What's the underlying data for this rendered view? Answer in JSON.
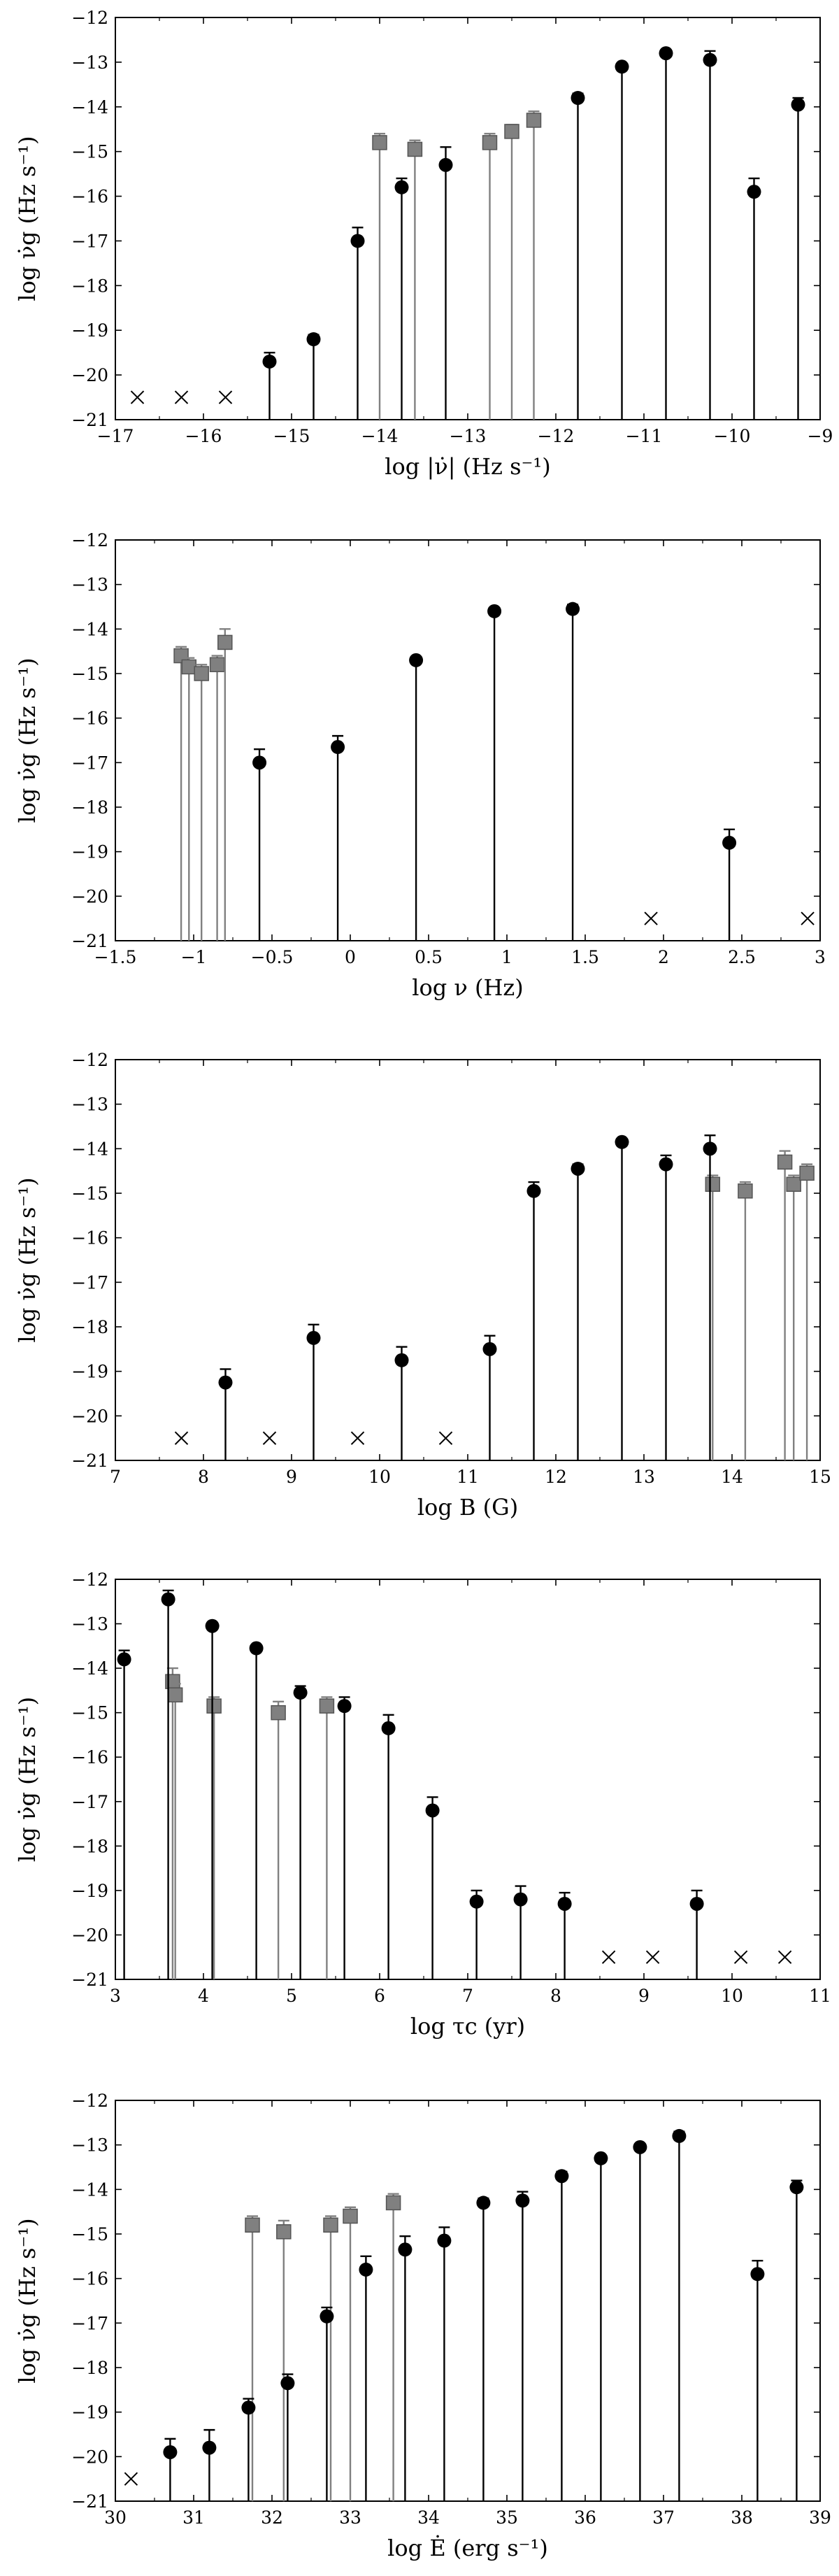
{
  "colors": {
    "black_series": "#000000",
    "gray_series": "#808080",
    "gray_edge": "#555555"
  },
  "panels": [
    {
      "ylabel": "log ν̇g (Hz s⁻¹)",
      "xlabel": "log |ν̇| (Hz s⁻¹)"
    },
    {
      "ylabel": "log ν̇g (Hz s⁻¹)",
      "xlabel": "log ν (Hz)"
    },
    {
      "ylabel": "log ν̇g (Hz s⁻¹)",
      "xlabel": "log B (G)"
    },
    {
      "ylabel": "log ν̇g (Hz s⁻¹)",
      "xlabel": "log τc (yr)"
    },
    {
      "ylabel": "log ν̇g (Hz s⁻¹)",
      "xlabel": "log Ė (erg s⁻¹)"
    }
  ],
  "chart_data": [
    {
      "type": "scatter",
      "xlabel": "log |ν̇| (Hz s⁻¹)",
      "ylabel": "log ν̇g (Hz s⁻¹)",
      "xlim": [
        -17,
        -9
      ],
      "ylim": [
        -21,
        -12
      ],
      "xticks": [
        -17,
        -16,
        -15,
        -14,
        -13,
        -12,
        -11,
        -10,
        -9
      ],
      "yticks": [
        -21,
        -20,
        -19,
        -18,
        -17,
        -16,
        -15,
        -14,
        -13,
        -12
      ],
      "series": [
        {
          "marker": "circle",
          "color": "#000000",
          "points": [
            [
              -15.25,
              -19.7,
              -0.5,
              0.2
            ],
            [
              -14.75,
              -19.2,
              -0.2,
              0.1
            ],
            [
              -14.25,
              -17.0,
              -0.9,
              0.3
            ],
            [
              -13.75,
              -15.8,
              -0.6,
              0.2
            ],
            [
              -13.25,
              -15.3,
              -0.7,
              0.4
            ],
            [
              -11.75,
              -13.8,
              -0.2,
              0.1
            ],
            [
              -11.25,
              -13.1,
              -0.05,
              0.05
            ],
            [
              -10.75,
              -12.8,
              -0.1,
              0.05
            ],
            [
              -10.25,
              -12.95,
              -0.3,
              0.2
            ],
            [
              -9.75,
              -15.9,
              -0.6,
              0.3
            ],
            [
              -9.25,
              -13.95,
              -0.2,
              0.15
            ]
          ]
        },
        {
          "marker": "square",
          "color": "#808080",
          "points": [
            [
              -14.0,
              -14.8,
              -0.8,
              0.2
            ],
            [
              -13.6,
              -14.95,
              -6.05,
              0.2
            ],
            [
              -12.75,
              -14.8,
              -0.3,
              0.2
            ],
            [
              -12.5,
              -14.55,
              -0.3,
              0.15
            ],
            [
              -12.25,
              -14.3,
              -6.7,
              0.2
            ]
          ]
        },
        {
          "marker": "cross",
          "color": "#000000",
          "points": [
            [
              -16.75,
              -20.5
            ],
            [
              -16.25,
              -20.5
            ],
            [
              -15.75,
              -20.5
            ]
          ]
        }
      ]
    },
    {
      "type": "scatter",
      "xlabel": "log ν (Hz)",
      "ylabel": "log ν̇g (Hz s⁻¹)",
      "xlim": [
        -1.5,
        3.0
      ],
      "ylim": [
        -21,
        -12
      ],
      "xticks": [
        -1.5,
        -1.0,
        -0.5,
        0.0,
        0.5,
        1.0,
        1.5,
        2.0,
        2.5,
        3.0
      ],
      "yticks": [
        -21,
        -20,
        -19,
        -18,
        -17,
        -16,
        -15,
        -14,
        -13,
        -12
      ],
      "series": [
        {
          "marker": "circle",
          "color": "#000000",
          "points": [
            [
              -0.58,
              -17.0,
              -0.7,
              0.3
            ],
            [
              -0.08,
              -16.65,
              -0.45,
              0.25
            ],
            [
              0.42,
              -14.7,
              -0.1,
              0.08
            ],
            [
              0.92,
              -13.6,
              -0.1,
              0.05
            ],
            [
              1.42,
              -13.55,
              -0.1,
              0.1
            ],
            [
              2.42,
              -18.8,
              -0.7,
              0.3
            ]
          ]
        },
        {
          "marker": "square",
          "color": "#808080",
          "points": [
            [
              -1.08,
              -14.6,
              -0.3,
              0.2
            ],
            [
              -1.03,
              -14.85,
              -0.4,
              0.2
            ],
            [
              -0.95,
              -15.0,
              -6.0,
              0.2
            ],
            [
              -0.85,
              -14.8,
              -6.2,
              0.2
            ],
            [
              -0.8,
              -14.3,
              -0.4,
              0.3
            ]
          ]
        },
        {
          "marker": "cross",
          "color": "#000000",
          "points": [
            [
              1.92,
              -20.5
            ],
            [
              2.92,
              -20.5
            ]
          ]
        }
      ]
    },
    {
      "type": "scatter",
      "xlabel": "log B (G)",
      "ylabel": "log ν̇g (Hz s⁻¹)",
      "xlim": [
        7,
        15
      ],
      "ylim": [
        -21,
        -12
      ],
      "xticks": [
        7,
        8,
        9,
        10,
        11,
        12,
        13,
        14,
        15
      ],
      "yticks": [
        -21,
        -20,
        -19,
        -18,
        -17,
        -16,
        -15,
        -14,
        -13,
        -12
      ],
      "series": [
        {
          "marker": "circle",
          "color": "#000000",
          "points": [
            [
              8.25,
              -19.25,
              -1.75,
              0.3
            ],
            [
              9.25,
              -18.25,
              -2.75,
              0.3
            ],
            [
              10.25,
              -18.75,
              -2.25,
              0.3
            ],
            [
              11.25,
              -18.5,
              -0.6,
              0.3
            ],
            [
              11.75,
              -14.95,
              -0.2,
              0.2
            ],
            [
              12.25,
              -14.45,
              -0.1,
              0.1
            ],
            [
              12.75,
              -13.85,
              -0.1,
              0.05
            ],
            [
              13.25,
              -14.35,
              -0.3,
              0.2
            ],
            [
              13.75,
              -14.0,
              -0.3,
              0.3
            ]
          ]
        },
        {
          "marker": "square",
          "color": "#808080",
          "points": [
            [
              13.78,
              -14.8,
              -0.8,
              0.2
            ],
            [
              14.15,
              -14.95,
              -6.05,
              0.2
            ],
            [
              14.6,
              -14.3,
              -6.7,
              0.25
            ],
            [
              14.7,
              -14.8,
              -0.5,
              0.2
            ],
            [
              14.85,
              -14.55,
              -0.3,
              0.2
            ]
          ]
        },
        {
          "marker": "cross",
          "color": "#000000",
          "points": [
            [
              7.75,
              -20.5
            ],
            [
              8.75,
              -20.5
            ],
            [
              9.75,
              -20.5
            ],
            [
              10.75,
              -20.5
            ]
          ]
        }
      ]
    },
    {
      "type": "scatter",
      "xlabel": "log τc (yr)",
      "ylabel": "log ν̇g (Hz s⁻¹)",
      "xlim": [
        3,
        11
      ],
      "ylim": [
        -21,
        -12
      ],
      "xticks": [
        3,
        4,
        5,
        6,
        7,
        8,
        9,
        10,
        11
      ],
      "yticks": [
        -21,
        -20,
        -19,
        -18,
        -17,
        -16,
        -15,
        -14,
        -13,
        -12
      ],
      "series": [
        {
          "marker": "circle",
          "color": "#000000",
          "points": [
            [
              3.1,
              -13.8,
              -0.3,
              0.2
            ],
            [
              3.6,
              -12.45,
              -0.2,
              0.2
            ],
            [
              4.1,
              -13.05,
              -0.05,
              0.05
            ],
            [
              4.6,
              -13.55,
              -0.05,
              0.05
            ],
            [
              5.1,
              -14.55,
              -0.2,
              0.15
            ],
            [
              5.6,
              -14.85,
              -0.3,
              0.2
            ],
            [
              6.1,
              -15.35,
              -0.5,
              0.3
            ],
            [
              6.6,
              -17.2,
              -0.8,
              0.3
            ],
            [
              7.1,
              -19.25,
              -0.45,
              0.25
            ],
            [
              7.6,
              -19.2,
              -0.6,
              0.3
            ],
            [
              8.1,
              -19.3,
              -0.5,
              0.25
            ],
            [
              9.6,
              -19.3,
              -1.7,
              0.3
            ]
          ]
        },
        {
          "marker": "square",
          "color": "#808080",
          "points": [
            [
              3.65,
              -14.3,
              -6.7,
              0.3
            ],
            [
              3.68,
              -14.6,
              -0.4,
              0.25
            ],
            [
              4.12,
              -14.85,
              -0.4,
              0.2
            ],
            [
              4.85,
              -15.0,
              -6.0,
              0.25
            ],
            [
              5.4,
              -14.85,
              -0.8,
              0.2
            ]
          ]
        },
        {
          "marker": "cross",
          "color": "#000000",
          "points": [
            [
              8.6,
              -20.5
            ],
            [
              9.1,
              -20.5
            ],
            [
              10.1,
              -20.5
            ],
            [
              10.6,
              -20.5
            ]
          ]
        }
      ]
    },
    {
      "type": "scatter",
      "xlabel": "log Ė (erg s⁻¹)",
      "ylabel": "log ν̇g (Hz s⁻¹)",
      "xlim": [
        30,
        39
      ],
      "ylim": [
        -21,
        -12
      ],
      "xticks": [
        30,
        31,
        32,
        33,
        34,
        35,
        36,
        37,
        38,
        39
      ],
      "yticks": [
        -21,
        -20,
        -19,
        -18,
        -17,
        -16,
        -15,
        -14,
        -13,
        -12
      ],
      "series": [
        {
          "marker": "circle",
          "color": "#000000",
          "points": [
            [
              30.7,
              -19.9,
              -1.1,
              0.3
            ],
            [
              31.2,
              -19.8,
              -0.5,
              0.4
            ],
            [
              31.7,
              -18.9,
              -0.3,
              0.2
            ],
            [
              32.2,
              -18.35,
              -0.3,
              0.2
            ],
            [
              32.7,
              -16.85,
              -0.4,
              0.2
            ],
            [
              33.2,
              -15.8,
              -0.6,
              0.3
            ],
            [
              33.7,
              -15.35,
              -0.85,
              0.3
            ],
            [
              34.2,
              -15.15,
              -1.0,
              0.3
            ],
            [
              34.7,
              -14.3,
              -0.2,
              0.1
            ],
            [
              35.2,
              -14.25,
              -0.3,
              0.2
            ],
            [
              35.7,
              -13.7,
              -0.15,
              0.1
            ],
            [
              36.2,
              -13.3,
              -0.05,
              0.05
            ],
            [
              36.7,
              -13.05,
              -0.05,
              0.05
            ],
            [
              37.2,
              -12.8,
              -0.1,
              0.1
            ],
            [
              38.2,
              -15.9,
              -0.55,
              0.3
            ],
            [
              38.7,
              -13.95,
              -0.2,
              0.15
            ]
          ]
        },
        {
          "marker": "square",
          "color": "#808080",
          "points": [
            [
              31.75,
              -14.8,
              -0.8,
              0.2
            ],
            [
              32.15,
              -14.95,
              -6.05,
              0.25
            ],
            [
              32.75,
              -14.8,
              -0.4,
              0.2
            ],
            [
              33.0,
              -14.6,
              -0.3,
              0.2
            ],
            [
              33.55,
              -14.3,
              -6.7,
              0.2
            ]
          ]
        },
        {
          "marker": "cross",
          "color": "#000000",
          "points": [
            [
              30.2,
              -20.5
            ]
          ]
        }
      ]
    }
  ]
}
